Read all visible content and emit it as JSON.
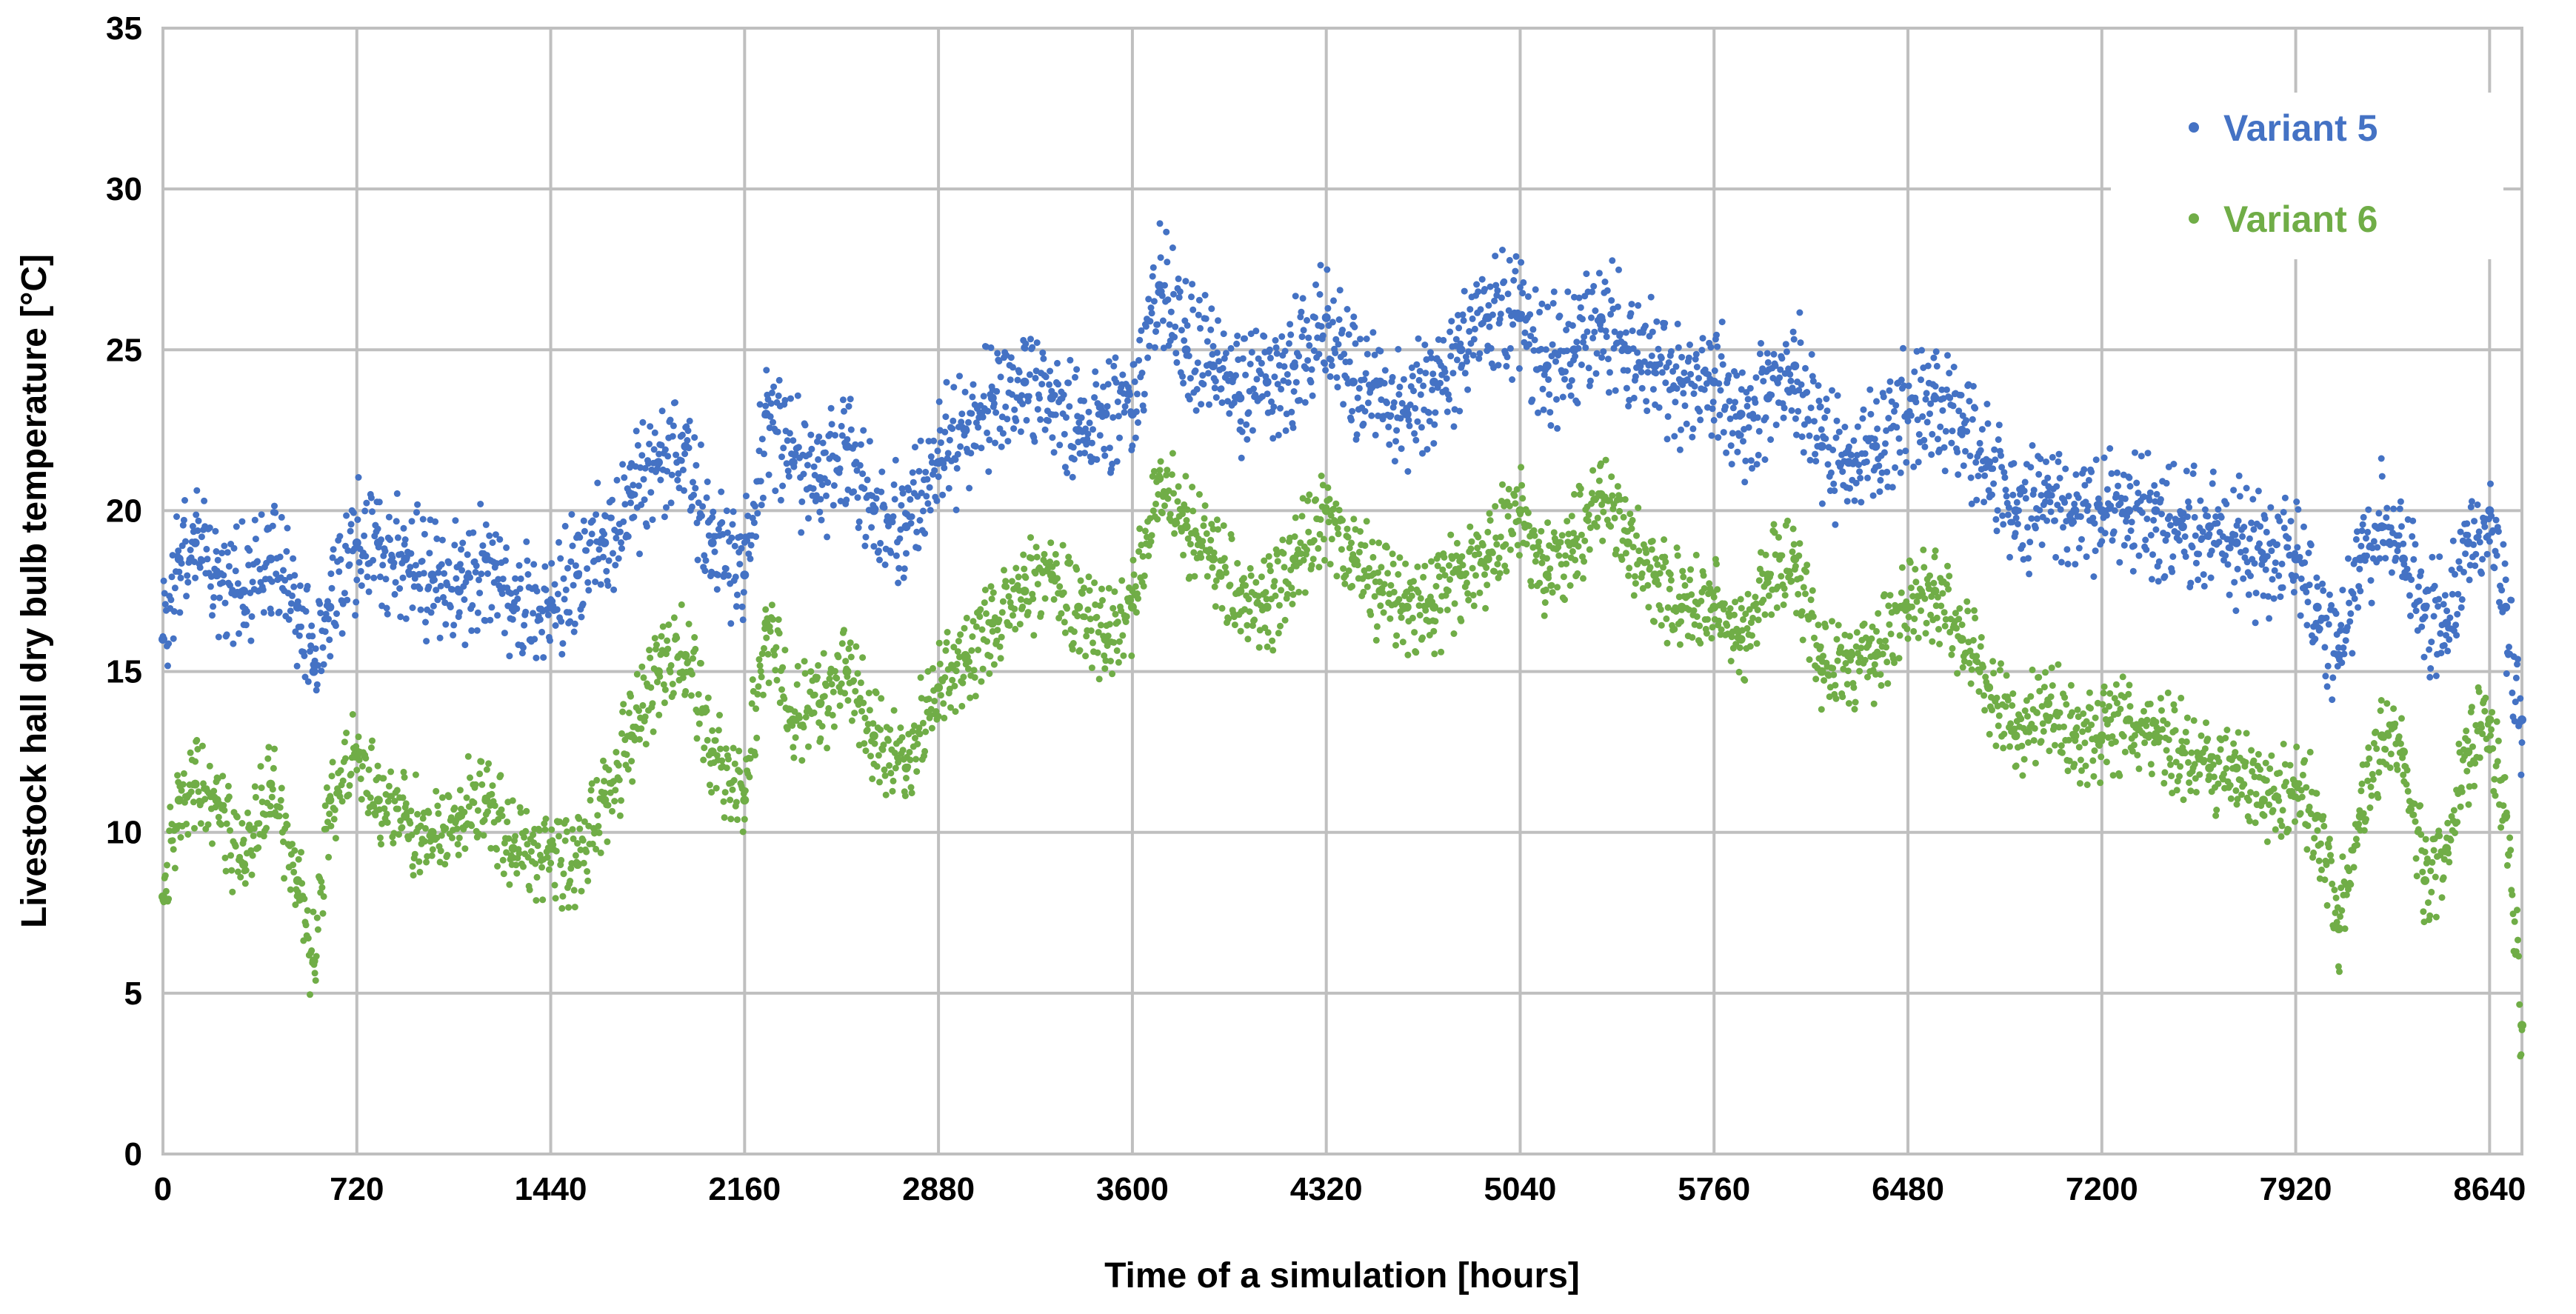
{
  "chart_data": {
    "type": "scatter",
    "title": "",
    "xlabel": "Time of a simulation  [hours]",
    "ylabel": "Livestock hall  dry  bulb temperature  [°C]",
    "xlim": [
      0,
      8760
    ],
    "ylim": [
      0,
      35
    ],
    "xticks": [
      "0",
      "720",
      "1440",
      "2160",
      "2880",
      "3600",
      "4320",
      "5040",
      "5760",
      "6480",
      "7200",
      "7920",
      "8640"
    ],
    "yticks": [
      "0",
      "5",
      "10",
      "15",
      "20",
      "25",
      "30",
      "35"
    ],
    "grid": true,
    "legend_position": "top-right",
    "series": [
      {
        "name": "Variant 5",
        "color": "#4472c4",
        "x": [
          0,
          60,
          120,
          200,
          300,
          400,
          500,
          560,
          620,
          720,
          800,
          900,
          1000,
          1100,
          1200,
          1300,
          1440,
          1540,
          1640,
          1740,
          1840,
          1940,
          2040,
          2160,
          2240,
          2340,
          2440,
          2540,
          2640,
          2760,
          2880,
          2980,
          3080,
          3200,
          3300,
          3400,
          3500,
          3600,
          3700,
          3800,
          3900,
          4000,
          4100,
          4200,
          4320,
          4420,
          4520,
          4620,
          4720,
          4820,
          4920,
          5040,
          5140,
          5240,
          5340,
          5440,
          5540,
          5640,
          5760,
          5860,
          5960,
          6060,
          6160,
          6260,
          6360,
          6480,
          6580,
          6680,
          6780,
          6880,
          7000,
          7100,
          7200,
          7300,
          7400,
          7500,
          7600,
          7700,
          7800,
          7920,
          8000,
          8080,
          8160,
          8240,
          8320,
          8400,
          8480,
          8560,
          8640,
          8700,
          8760
        ],
        "y": [
          16,
          18.5,
          19,
          18,
          17.5,
          18.5,
          17,
          15,
          17,
          19,
          19,
          18.5,
          18,
          17.5,
          18.5,
          17,
          17,
          18,
          19,
          20.5,
          21.5,
          22,
          19,
          18,
          23,
          21.5,
          21,
          22,
          20,
          19.5,
          21.5,
          22.5,
          23.5,
          24,
          23.5,
          22.5,
          23,
          23,
          27,
          25,
          24.5,
          23.5,
          24,
          24.5,
          26,
          24,
          24,
          23,
          24,
          25,
          26,
          26,
          24.5,
          25,
          26,
          25,
          24.5,
          24,
          24,
          23,
          23.5,
          24.5,
          22,
          21.5,
          22,
          23,
          23.5,
          22.5,
          21.5,
          20,
          20.5,
          20,
          20,
          20,
          20,
          19.5,
          19.5,
          19,
          18.5,
          18.5,
          17,
          15.5,
          18.5,
          19.5,
          18.5,
          17,
          16.5,
          19,
          20,
          17,
          13.5
        ]
      },
      {
        "name": "Variant 6",
        "color": "#70ad47",
        "x": [
          0,
          60,
          120,
          200,
          300,
          400,
          500,
          560,
          620,
          720,
          800,
          900,
          1000,
          1100,
          1200,
          1300,
          1440,
          1540,
          1640,
          1740,
          1840,
          1940,
          2040,
          2160,
          2240,
          2340,
          2440,
          2540,
          2640,
          2760,
          2880,
          2980,
          3080,
          3200,
          3300,
          3400,
          3500,
          3600,
          3700,
          3800,
          3900,
          4000,
          4100,
          4200,
          4320,
          4420,
          4520,
          4620,
          4720,
          4820,
          4920,
          5040,
          5140,
          5240,
          5340,
          5440,
          5540,
          5640,
          5760,
          5860,
          5960,
          6060,
          6160,
          6260,
          6360,
          6480,
          6580,
          6680,
          6780,
          6880,
          7000,
          7100,
          7200,
          7300,
          7400,
          7500,
          7600,
          7700,
          7800,
          7920,
          8000,
          8080,
          8160,
          8240,
          8320,
          8400,
          8480,
          8560,
          8640,
          8700,
          8760
        ],
        "y": [
          8,
          11,
          11.5,
          11,
          9,
          11.5,
          8.5,
          6,
          11,
          12.5,
          11,
          10.5,
          10,
          10.5,
          11,
          9.5,
          9.5,
          9,
          11,
          13,
          15,
          15.5,
          12.5,
          11,
          16.5,
          13.5,
          14,
          15,
          13,
          12,
          14.5,
          15.5,
          16.5,
          17.5,
          18,
          17,
          16,
          17,
          21,
          19.5,
          18.5,
          17.5,
          17,
          18.5,
          20,
          18.5,
          17.5,
          17,
          17,
          18,
          18.5,
          20,
          18,
          19,
          20.5,
          19,
          18,
          17,
          17,
          16,
          18,
          18.5,
          15,
          15.5,
          15.5,
          17,
          17.5,
          16,
          14.5,
          13,
          14,
          13,
          13,
          13.5,
          13,
          12.5,
          12,
          12,
          11,
          11.5,
          10.5,
          7,
          10.5,
          13,
          12.5,
          8.5,
          9.5,
          12.5,
          13.5,
          10.5,
          4
        ]
      }
    ]
  }
}
